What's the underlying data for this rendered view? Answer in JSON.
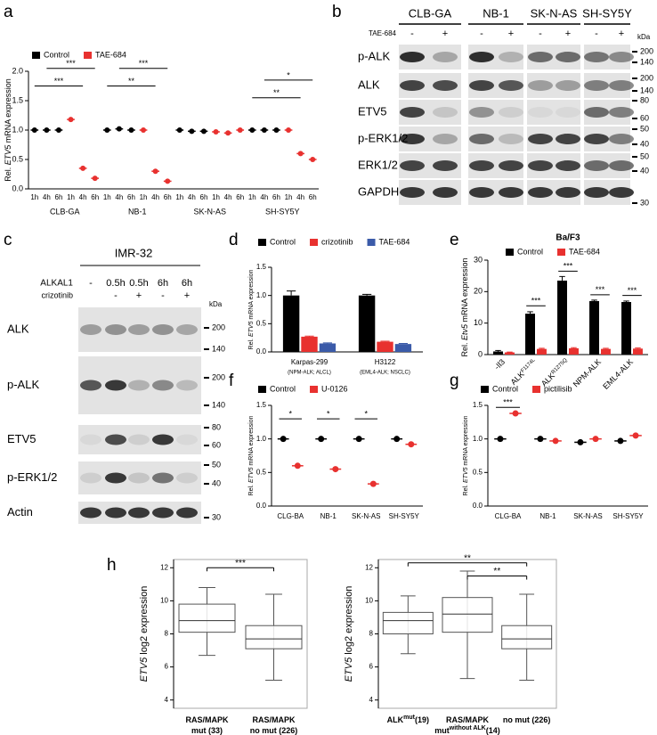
{
  "panel_labels": [
    "a",
    "b",
    "c",
    "d",
    "e",
    "f",
    "g",
    "h"
  ],
  "blot_b": {
    "columns": [
      "CLB-GA",
      "NB-1",
      "SK-N-AS",
      "SH-SY5Y"
    ],
    "treatment": "TAE-684",
    "lanes": [
      "-",
      "+",
      "-",
      "+",
      "-",
      "+",
      "-",
      "+"
    ],
    "rows": [
      "p-ALK",
      "ALK",
      "ETV5",
      "p-ERK1/2",
      "ERK1/2",
      "GAPDH"
    ],
    "kda_unit": "kDa",
    "markers": [
      200,
      140,
      200,
      140,
      80,
      60,
      50,
      40,
      50,
      40,
      30
    ]
  },
  "blot_c": {
    "title": "IMR-32",
    "treatments": [
      {
        "name": "ALKAL1",
        "lanes": [
          "-",
          "0.5h",
          "0.5h",
          "6h",
          "6h"
        ]
      },
      {
        "name": "crizotinib",
        "lanes": [
          null,
          "-",
          "+",
          "-",
          "+"
        ]
      }
    ],
    "rows": [
      "ALK",
      "p-ALK",
      "ETV5",
      "p-ERK1/2",
      "Actin"
    ],
    "kda_unit": "kDa",
    "markers": [
      200,
      140,
      200,
      140,
      80,
      60,
      50,
      40,
      30
    ]
  },
  "chart_data": [
    {
      "type": "dot",
      "ylabel": [
        "Rel. ",
        "ETV5",
        " mRNA expression"
      ],
      "categories": [
        "1h",
        "4h",
        "6h",
        "1h",
        "4h",
        "6h",
        "1h",
        "4h",
        "6h",
        "1h",
        "4h",
        "6h",
        "1h",
        "4h",
        "6h",
        "1h",
        "4h",
        "6h",
        "1h",
        "4h",
        "6h",
        "1h",
        "4h",
        "6h"
      ],
      "groups": [
        "CLB-GA",
        "NB-1",
        "SK-N-AS",
        "SH-SY5Y"
      ],
      "series": [
        {
          "name": "Control",
          "color": "#000000",
          "values": [
            1.0,
            1.0,
            1.0,
            null,
            null,
            null,
            1.0,
            1.02,
            1.0,
            null,
            null,
            null,
            1.0,
            0.98,
            0.98,
            null,
            null,
            null,
            1.0,
            1.0,
            1.0,
            null,
            null,
            null
          ]
        },
        {
          "name": "TAE-684",
          "color": "#e8312f",
          "values": [
            null,
            null,
            null,
            1.18,
            0.35,
            0.18,
            null,
            null,
            null,
            1.0,
            0.3,
            0.13,
            null,
            null,
            null,
            0.97,
            0.95,
            1.0,
            null,
            null,
            null,
            1.0,
            0.6,
            0.5
          ]
        }
      ],
      "ylim": [
        0,
        2.0
      ],
      "yticks": [
        {
          "value": 0,
          "label": "0.0"
        },
        {
          "value": 0.5,
          "label": "0.5"
        },
        {
          "value": 1.0,
          "label": "1.0"
        },
        {
          "value": 1.5,
          "label": "1.5"
        },
        {
          "value": 2.0,
          "label": "2.0"
        }
      ],
      "significance": [
        "***",
        "***",
        "***",
        "**",
        "*",
        "**"
      ]
    },
    {
      "type": "bar",
      "ylabel": [
        "Rel. ",
        "ETV5",
        " mRNA expression"
      ],
      "categories": [
        "Karpas-299",
        "H3122"
      ],
      "category_notes": [
        "(NPM-ALK; ALCL)",
        "(EML4-ALK; NSCLC)"
      ],
      "series": [
        {
          "name": "Control",
          "color": "#000000",
          "values": [
            1.0,
            1.0
          ],
          "errors": [
            0.08,
            0.02
          ]
        },
        {
          "name": "crizotinib",
          "color": "#e8312f",
          "values": [
            0.27,
            0.18
          ],
          "errors": [
            0.01,
            0.01
          ]
        },
        {
          "name": "TAE-684",
          "color": "#3b5ba9",
          "values": [
            0.15,
            0.14
          ],
          "errors": [
            0.01,
            0.01
          ]
        }
      ],
      "ylim": [
        0,
        1.5
      ],
      "yticks": [
        {
          "value": 0,
          "label": "0.0"
        },
        {
          "value": 0.5,
          "label": "0.5"
        },
        {
          "value": 1.0,
          "label": "1.0"
        },
        {
          "value": 1.5,
          "label": "1.5"
        }
      ]
    },
    {
      "type": "bar",
      "title": "Ba/F3",
      "ylabel": [
        "Rel. ",
        "Etv5",
        " mRNA expression"
      ],
      "categories": [
        "-Il3",
        "ALK",
        "ALK",
        "NPM-ALK",
        "EML4-ALK"
      ],
      "category_superscripts": [
        null,
        "F1174L",
        "R1275Q",
        null,
        null
      ],
      "series": [
        {
          "name": "Control",
          "color": "#000000",
          "values": [
            1.0,
            13.0,
            23.5,
            17.0,
            16.7
          ],
          "errors": [
            0.3,
            0.6,
            1.3,
            0.3,
            0.3
          ]
        },
        {
          "name": "TAE-684",
          "color": "#e8312f",
          "values": [
            0.7,
            1.8,
            2.0,
            1.8,
            1.9
          ],
          "errors": [
            0.1,
            0.2,
            0.2,
            0.2,
            0.2
          ]
        }
      ],
      "ylim": [
        0,
        30
      ],
      "yticks": [
        0,
        10,
        20,
        30
      ],
      "significance": [
        "***",
        "***",
        "***",
        "***"
      ]
    },
    {
      "type": "dot",
      "ylabel": [
        "Rel. ",
        "ETV5",
        " mRNA expression"
      ],
      "categories": [
        "CLG-BA",
        "NB-1",
        "SK-N-AS",
        "SH-SY5Y"
      ],
      "series": [
        {
          "name": "Control",
          "color": "#000000",
          "values": [
            1.0,
            1.0,
            1.0,
            1.0
          ]
        },
        {
          "name": "U-0126",
          "color": "#e8312f",
          "values": [
            0.6,
            0.55,
            0.33,
            0.92
          ]
        }
      ],
      "ylim": [
        0,
        1.5
      ],
      "yticks": [
        {
          "value": 0,
          "label": "0.0"
        },
        {
          "value": 0.5,
          "label": "0.5"
        },
        {
          "value": 1.0,
          "label": "1.0"
        },
        {
          "value": 1.5,
          "label": "1.5"
        }
      ],
      "significance": [
        "*",
        "*",
        "*"
      ]
    },
    {
      "type": "dot",
      "ylabel": [
        "Rel. ",
        "ETV5",
        " mRNA expression"
      ],
      "categories": [
        "CLG-BA",
        "NB-1",
        "SK-N-AS",
        "SH-SY5Y"
      ],
      "series": [
        {
          "name": "Control",
          "color": "#000000",
          "values": [
            1.0,
            1.0,
            0.95,
            0.97
          ]
        },
        {
          "name": "pictilisib",
          "color": "#e8312f",
          "values": [
            1.38,
            0.97,
            1.0,
            1.05
          ]
        }
      ],
      "ylim": [
        0,
        1.5
      ],
      "yticks": [
        {
          "value": 0,
          "label": "0.0"
        },
        {
          "value": 0.5,
          "label": "0.5"
        },
        {
          "value": 1.0,
          "label": "1.0"
        },
        {
          "value": 1.5,
          "label": "1.5"
        }
      ],
      "significance": [
        "***"
      ]
    },
    {
      "type": "box",
      "ylabel": [
        "",
        "ETV5",
        " log2 expression"
      ],
      "categories": [
        [
          [
            "RAS/MAPK"
          ],
          [
            "mut (33)"
          ]
        ],
        [
          [
            "RAS/MAPK"
          ],
          [
            "no mut (226)"
          ]
        ]
      ],
      "q1": [
        8.1,
        7.1
      ],
      "median": [
        8.8,
        7.7
      ],
      "q3": [
        9.8,
        8.5
      ],
      "whisker_low": [
        6.7,
        5.2
      ],
      "whisker_high": [
        10.8,
        10.4
      ],
      "ylim": [
        3.5,
        12.5
      ],
      "yticks": [
        4,
        6,
        8,
        10,
        12
      ],
      "significance": [
        "***"
      ]
    },
    {
      "type": "box",
      "ylabel": [
        "",
        "ETV5",
        " log2 expression"
      ],
      "categories": [
        [
          [
            "ALK",
            "mut",
            "(19)"
          ]
        ],
        [
          [
            "RAS/MAPK"
          ],
          [
            "mut",
            "without ALK",
            "(14)"
          ]
        ],
        [
          [
            "no mut (226)"
          ]
        ]
      ],
      "q1": [
        8.0,
        8.1,
        7.1
      ],
      "median": [
        8.8,
        9.2,
        7.7
      ],
      "q3": [
        9.3,
        10.2,
        8.5
      ],
      "whisker_low": [
        6.8,
        5.3,
        5.2
      ],
      "whisker_high": [
        10.3,
        11.8,
        10.4
      ],
      "ylim": [
        3.5,
        12.5
      ],
      "yticks": [
        4,
        6,
        8,
        10,
        12
      ],
      "significance": [
        "**",
        "**"
      ]
    }
  ]
}
